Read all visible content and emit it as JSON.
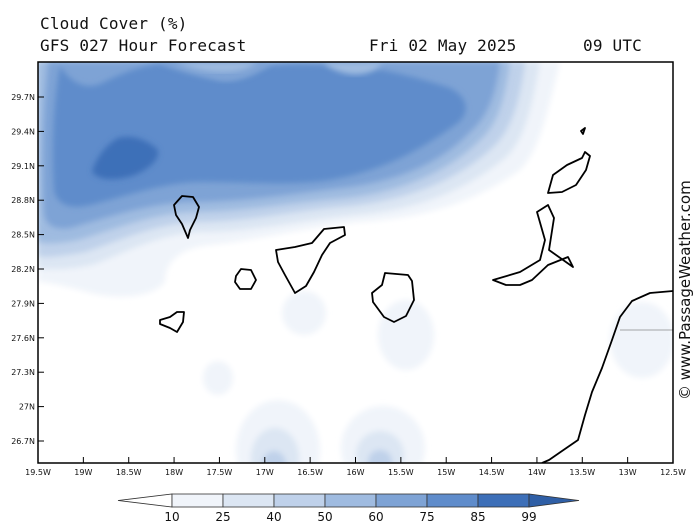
{
  "header": {
    "title": "Cloud Cover (%)",
    "subtitle": "GFS 027 Hour Forecast",
    "date": "Fri 02 May 2025",
    "time": "09 UTC"
  },
  "copyright": "© www.PassageWeather.com",
  "map": {
    "lat_labels": [
      "29.7N",
      "29.4N",
      "29.1N",
      "28.8N",
      "28.5N",
      "28.2N",
      "27.9N",
      "27.6N",
      "27.3N",
      "27N",
      "26.7N"
    ],
    "lon_labels": [
      "19.5W",
      "19W",
      "18.5W",
      "18W",
      "17.5W",
      "17W",
      "16.5W",
      "16W",
      "15.5W",
      "15W",
      "14.5W",
      "14W",
      "13.5W",
      "13W",
      "12.5W"
    ]
  },
  "colorbar": {
    "levels": [
      "10",
      "25",
      "40",
      "50",
      "60",
      "75",
      "85",
      "99"
    ],
    "colors": [
      "#ffffff",
      "#f0f4fa",
      "#dce6f3",
      "#bfd1ea",
      "#9fbbe0",
      "#7ea3d5",
      "#5f8ccb",
      "#3d6fb8",
      "#2f5fa6"
    ]
  }
}
